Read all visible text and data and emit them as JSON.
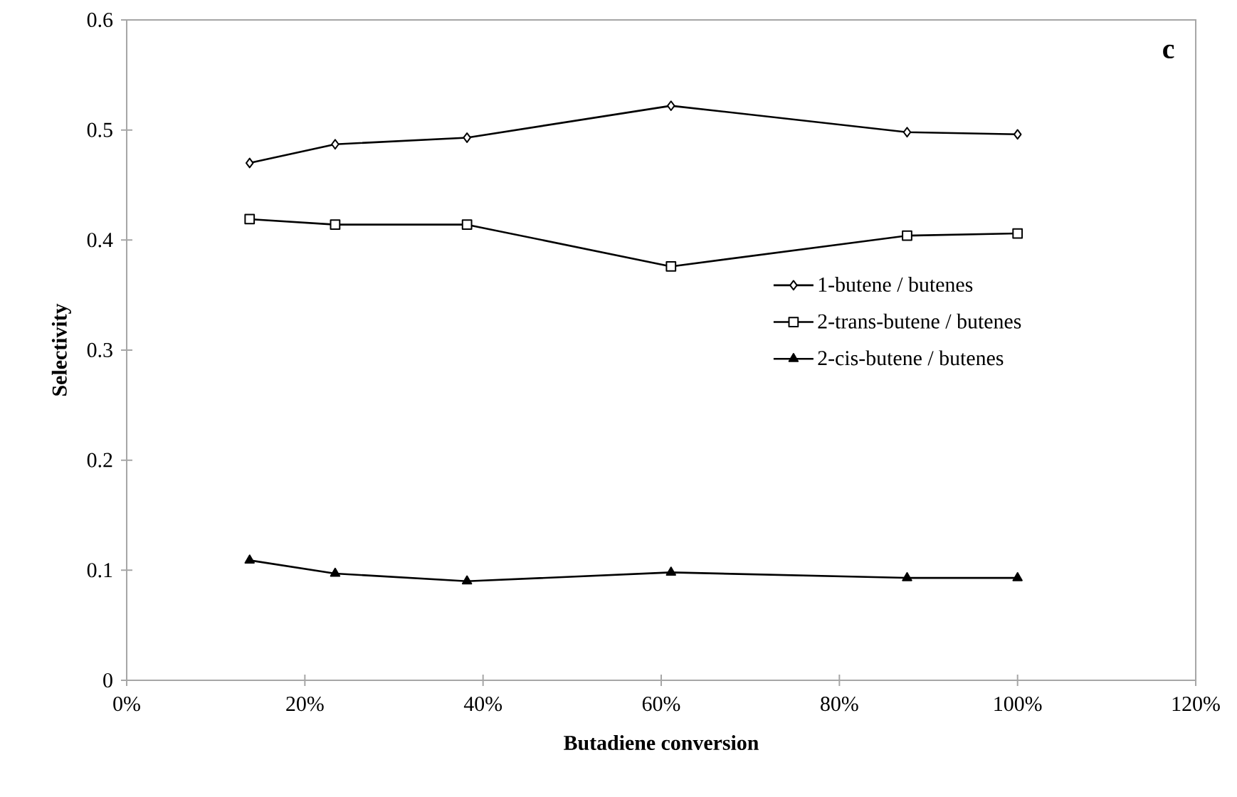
{
  "chart_data": {
    "type": "line",
    "xlabel": "Butadiene conversion",
    "ylabel": "Selectivity",
    "annotations": [
      "c"
    ],
    "x": [
      13.8,
      23.4,
      38.2,
      61.1,
      87.6,
      100
    ],
    "series": [
      {
        "name": "1-butene / butenes",
        "color": "#000000",
        "marker": "diamond",
        "values": [
          0.47,
          0.487,
          0.493,
          0.522,
          0.498,
          0.496
        ]
      },
      {
        "name": "2-trans-butene / butenes",
        "color": "#000000",
        "marker": "square",
        "values": [
          0.419,
          0.414,
          0.414,
          0.376,
          0.404,
          0.406
        ]
      },
      {
        "name": "2-cis-butene / butenes",
        "color": "#000000",
        "marker": "triangle",
        "values": [
          0.109,
          0.097,
          0.09,
          0.098,
          0.093,
          0.093
        ]
      }
    ],
    "xlim": [
      0,
      120
    ],
    "xticks": [
      {
        "value": 0,
        "label": "0%"
      },
      {
        "value": 20,
        "label": "20%"
      },
      {
        "value": 40,
        "label": "40%"
      },
      {
        "value": 60,
        "label": "60%"
      },
      {
        "value": 80,
        "label": "80%"
      },
      {
        "value": 100,
        "label": "100%"
      },
      {
        "value": 120,
        "label": "120%"
      }
    ],
    "ylim": [
      0,
      0.6
    ],
    "yticks": [
      0,
      0.1,
      0.2,
      0.3,
      0.4,
      0.5,
      0.6
    ],
    "grid": false,
    "legend": "right",
    "line_style": "solid"
  }
}
